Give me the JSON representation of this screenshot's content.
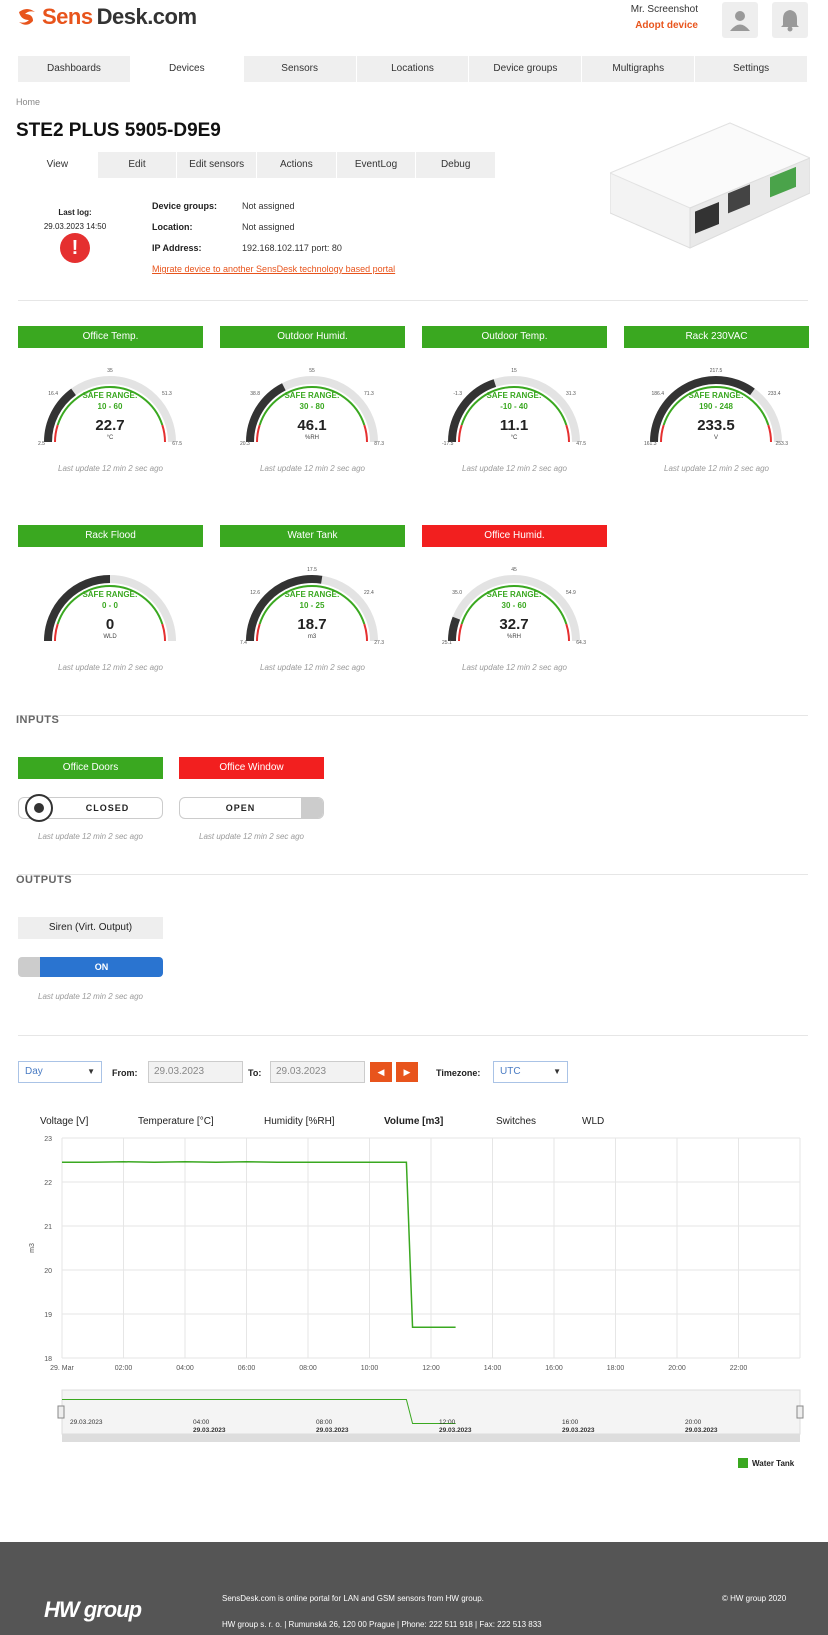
{
  "header": {
    "logo_text_a": "Sens",
    "logo_text_b": "Desk.com",
    "user_name": "Mr. Screenshot",
    "adopt_label": "Adopt device"
  },
  "nav": [
    "Dashboards",
    "Devices",
    "Sensors",
    "Locations",
    "Device groups",
    "Multigraphs",
    "Settings"
  ],
  "breadcrumb": "Home",
  "title": "STE2 PLUS 5905-D9E9",
  "subtabs": [
    "View",
    "Edit",
    "Edit sensors",
    "Actions",
    "EventLog",
    "Debug"
  ],
  "lastlog": {
    "label": "Last log:",
    "value": "29.03.2023 14:50"
  },
  "info": {
    "groups_k": "Device groups:",
    "groups_v": "Not assigned",
    "loc_k": "Location:",
    "loc_v": "Not assigned",
    "ip_k": "IP Address:",
    "ip_v": "192.168.102.117 port: 80",
    "migrate": "Migrate device to another SensDesk technology based portal"
  },
  "safe_label": "SAFE RANGE:",
  "update_text": "Last update 12 min 2 sec ago",
  "sensors": [
    {
      "name": "Office Temp.",
      "status": "green",
      "value": "22.7",
      "unit": "°C",
      "range": "10 - 60",
      "t_min": "2.5",
      "t_l": "16.4",
      "t_top": "35",
      "t_r": "51.3",
      "t_max": "67.5",
      "level": 0.3
    },
    {
      "name": "Outdoor Humid.",
      "status": "green",
      "value": "46.1",
      "unit": "%RH",
      "range": "30 - 80",
      "t_min": "20.3",
      "t_l": "38.8",
      "t_top": "55",
      "t_r": "71.3",
      "t_max": "87.3",
      "level": 0.35
    },
    {
      "name": "Outdoor Temp.",
      "status": "green",
      "value": "11.1",
      "unit": "°C",
      "range": "-10 - 40",
      "t_min": "-17.5",
      "t_l": "-1.3",
      "t_top": "15",
      "t_r": "31.3",
      "t_max": "47.5",
      "level": 0.4
    },
    {
      "name": "Rack 230VAC",
      "status": "green",
      "value": "233.5",
      "unit": "V",
      "range": "190 - 248",
      "t_min": "161.3",
      "t_l": "186.4",
      "t_top": "217.5",
      "t_r": "233.4",
      "t_max": "253.3",
      "level": 0.7
    },
    {
      "name": "Rack Flood",
      "status": "green",
      "value": "0",
      "unit": "WLD",
      "range": "0 - 0",
      "t_min": "",
      "t_l": "",
      "t_top": "",
      "t_r": "",
      "t_max": "",
      "level": 0.5
    },
    {
      "name": "Water Tank",
      "status": "green",
      "value": "18.7",
      "unit": "m3",
      "range": "10 - 25",
      "t_min": "7.4",
      "t_l": "12.6",
      "t_top": "17.5",
      "t_r": "22.4",
      "t_max": "27.3",
      "level": 0.55
    },
    {
      "name": "Office Humid.",
      "status": "red",
      "value": "32.7",
      "unit": "%RH",
      "range": "30 - 60",
      "t_min": "25.1",
      "t_l": "35.0",
      "t_top": "45",
      "t_r": "54.9",
      "t_max": "64.3",
      "level": 0.12
    }
  ],
  "inputs_title": "INPUTS",
  "inputs": [
    {
      "name": "Office Doors",
      "status": "green",
      "state": "CLOSED"
    },
    {
      "name": "Office Window",
      "status": "red",
      "state": "OPEN"
    }
  ],
  "outputs_title": "OUTPUTS",
  "output": {
    "name": "Siren (Virt. Output)",
    "state": "ON"
  },
  "chart_controls": {
    "period": "Day",
    "from_label": "From:",
    "from": "29.03.2023",
    "to_label": "To:",
    "to": "29.03.2023",
    "tz_label": "Timezone:",
    "tz": "UTC"
  },
  "chart_tabs": [
    "Voltage [V]",
    "Temperature [°C]",
    "Humidity [%RH]",
    "Volume [m3]",
    "Switches",
    "WLD"
  ],
  "chart_data": {
    "type": "line",
    "ylabel": "m3",
    "ylim": [
      18,
      23
    ],
    "y_ticks": [
      "23",
      "22",
      "21",
      "20",
      "19",
      "18"
    ],
    "x_ticks": [
      "29. Mar",
      "02:00",
      "04:00",
      "06:00",
      "08:00",
      "10:00",
      "12:00",
      "14:00",
      "16:00",
      "18:00",
      "20:00",
      "22:00"
    ],
    "series": [
      {
        "name": "Water Tank",
        "x_hours": [
          0,
          1,
          2,
          3,
          4,
          5,
          6,
          7,
          8,
          9,
          10,
          11.2,
          11.4,
          12.8
        ],
        "values": [
          22.45,
          22.45,
          22.46,
          22.45,
          22.46,
          22.45,
          22.46,
          22.45,
          22.45,
          22.45,
          22.45,
          22.45,
          18.7,
          18.7
        ]
      }
    ],
    "nav_labels": [
      {
        "t": "29.03.2023",
        "d": ""
      },
      {
        "t": "04:00",
        "d": "29.03.2023"
      },
      {
        "t": "08:00",
        "d": "29.03.2023"
      },
      {
        "t": "12:00",
        "d": "29.03.2023"
      },
      {
        "t": "16:00",
        "d": "29.03.2023"
      },
      {
        "t": "20:00",
        "d": "29.03.2023"
      }
    ]
  },
  "footer": {
    "text1": "SensDesk.com is online portal for LAN and GSM sensors from HW group.",
    "text2": "HW group s. r. o. | Rumunská 26, 120 00 Prague | Phone: 222 511 918 | Fax: 222 513 833",
    "copy": "© HW group 2020",
    "logo": "HW group"
  }
}
